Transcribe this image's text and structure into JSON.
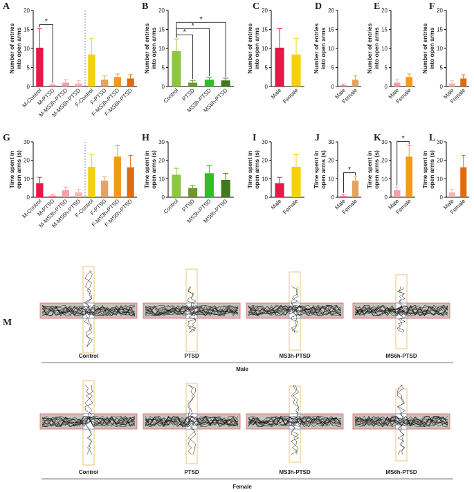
{
  "chart_data": [
    {
      "type": "bar",
      "panel": "A",
      "ylabel": [
        "Number of entries",
        "into open arms"
      ],
      "categories": [
        "M-Control",
        "M-PTSD",
        "M-MS3h-PTSD",
        "M-MS6h-PTSD",
        "F-Control",
        "F-PTSD",
        "F-MS3h-PTSD",
        "F-MS6h-PTSD"
      ],
      "values": [
        10.2,
        0.3,
        1.0,
        0.8,
        8.4,
        1.8,
        2.5,
        2.1
      ],
      "errors": [
        5.0,
        0.3,
        0.8,
        0.7,
        4.2,
        1.0,
        0.8,
        1.0
      ],
      "colors": [
        "#e8174a",
        "#f07b8c",
        "#f4a0a5",
        "#f5b5b5",
        "#f5d10c",
        "#e3a462",
        "#f39a1e",
        "#e06b0f"
      ],
      "ylim": [
        0,
        20
      ],
      "yticks": [
        0,
        5,
        10,
        15,
        20
      ],
      "divider_after": 3,
      "significance": [
        {
          "pair": [
            0,
            1
          ],
          "label": "*"
        }
      ]
    },
    {
      "type": "bar",
      "panel": "B",
      "ylabel": [
        "Number of entries",
        "into open arms"
      ],
      "categories": [
        "Control",
        "PTSD",
        "MS3h-PTSD",
        "MS6h-PTSD"
      ],
      "values": [
        9.3,
        1.0,
        1.8,
        1.6
      ],
      "errors": [
        3.2,
        0.6,
        0.6,
        0.6
      ],
      "colors": [
        "#8dc63f",
        "#6b9a2a",
        "#33bb2a",
        "#3f7a1e"
      ],
      "ylim": [
        0,
        20
      ],
      "yticks": [
        0,
        5,
        10,
        15,
        20
      ],
      "significance": [
        {
          "pair": [
            0,
            1
          ],
          "label": "*"
        },
        {
          "pair": [
            0,
            2
          ],
          "label": "*"
        },
        {
          "pair": [
            0,
            3
          ],
          "label": "*"
        }
      ]
    },
    {
      "type": "bar",
      "panel": "C",
      "ylabel": [
        "Number of entries",
        "into open arms"
      ],
      "categories": [
        "Male",
        "Female"
      ],
      "values": [
        10.2,
        8.4
      ],
      "errors": [
        5.0,
        4.2
      ],
      "colors": [
        "#e8174a",
        "#f5d10c"
      ],
      "ylim": [
        0,
        20
      ],
      "yticks": [
        0,
        5,
        10,
        15,
        20
      ]
    },
    {
      "type": "bar",
      "panel": "D",
      "ylabel": [
        "Number of entries",
        "into open arms"
      ],
      "categories": [
        "Male",
        "Female"
      ],
      "values": [
        0.3,
        1.8
      ],
      "errors": [
        0.3,
        1.0
      ],
      "colors": [
        "#f07b8c",
        "#e3a462"
      ],
      "ylim": [
        0,
        20
      ],
      "yticks": [
        0,
        5,
        10,
        15,
        20
      ]
    },
    {
      "type": "bar",
      "panel": "E",
      "ylabel": [
        "Number of entries",
        "into open arms"
      ],
      "categories": [
        "Male",
        "Female"
      ],
      "values": [
        1.0,
        2.5
      ],
      "errors": [
        0.8,
        0.8
      ],
      "colors": [
        "#f4a0a5",
        "#f39a1e"
      ],
      "ylim": [
        0,
        20
      ],
      "yticks": [
        0,
        5,
        10,
        15,
        20
      ]
    },
    {
      "type": "bar",
      "panel": "F",
      "ylabel": [
        "Number of entries",
        "into open arms"
      ],
      "categories": [
        "Male",
        "Female"
      ],
      "values": [
        0.8,
        2.1
      ],
      "errors": [
        0.7,
        1.0
      ],
      "colors": [
        "#f5b5b5",
        "#e06b0f"
      ],
      "ylim": [
        0,
        20
      ],
      "yticks": [
        0,
        5,
        10,
        15,
        20
      ]
    },
    {
      "type": "bar",
      "panel": "G",
      "ylabel": [
        "Time spent in",
        "open arms (s)"
      ],
      "categories": [
        "M-Control",
        "M-PTSD",
        "M-MS3h-PTSD",
        "M-MS6h-PTSD",
        "F-Control",
        "F-PTSD",
        "F-MS3h-PTSD",
        "F-MS6h-PTSD"
      ],
      "values": [
        7.6,
        0.8,
        3.8,
        2.6,
        16.5,
        9.0,
        22.0,
        16.2
      ],
      "errors": [
        3.2,
        0.8,
        1.8,
        1.6,
        6.5,
        2.0,
        6.0,
        6.5
      ],
      "colors": [
        "#e8174a",
        "#f07b8c",
        "#f4a0a5",
        "#f5b5b5",
        "#f5d10c",
        "#e3a462",
        "#f39a1e",
        "#e06b0f"
      ],
      "ylim": [
        0,
        30
      ],
      "yticks": [
        0,
        10,
        20,
        30
      ],
      "divider_after": 3
    },
    {
      "type": "bar",
      "panel": "H",
      "ylabel": [
        "Time spent in",
        "open arms (s)"
      ],
      "categories": [
        "Control",
        "PTSD",
        "MS3h-PTSD",
        "MS6h-PTSD"
      ],
      "values": [
        12.2,
        5.0,
        13.0,
        9.4
      ],
      "errors": [
        3.5,
        1.5,
        4.0,
        3.5
      ],
      "colors": [
        "#8dc63f",
        "#6b9a2a",
        "#33bb2a",
        "#3f7a1e"
      ],
      "ylim": [
        0,
        30
      ],
      "yticks": [
        0,
        10,
        20,
        30
      ]
    },
    {
      "type": "bar",
      "panel": "I",
      "ylabel": [
        "Time spent in",
        "open arms (s)"
      ],
      "categories": [
        "Male",
        "Female"
      ],
      "values": [
        7.6,
        16.5
      ],
      "errors": [
        3.2,
        6.5
      ],
      "colors": [
        "#e8174a",
        "#f5d10c"
      ],
      "ylim": [
        0,
        30
      ],
      "yticks": [
        0,
        10,
        20,
        30
      ]
    },
    {
      "type": "bar",
      "panel": "J",
      "ylabel": [
        "Time spent in",
        "open arms (s)"
      ],
      "categories": [
        "Male",
        "Female"
      ],
      "values": [
        0.8,
        9.0
      ],
      "errors": [
        0.8,
        2.0
      ],
      "colors": [
        "#f07b8c",
        "#e3a462"
      ],
      "ylim": [
        0,
        30
      ],
      "yticks": [
        0,
        10,
        20,
        30
      ],
      "significance": [
        {
          "pair": [
            0,
            1
          ],
          "label": "*"
        }
      ]
    },
    {
      "type": "bar",
      "panel": "K",
      "ylabel": [
        "Time spent in",
        "open arms (s)"
      ],
      "categories": [
        "Male",
        "Female"
      ],
      "values": [
        3.8,
        22.0
      ],
      "errors": [
        1.8,
        6.0
      ],
      "colors": [
        "#f4a0a5",
        "#f39a1e"
      ],
      "ylim": [
        0,
        30
      ],
      "yticks": [
        0,
        10,
        20,
        30
      ],
      "significance": [
        {
          "pair": [
            0,
            1
          ],
          "label": "*"
        }
      ]
    },
    {
      "type": "bar",
      "panel": "L",
      "ylabel": [
        "Time spent in",
        "open arms (s)"
      ],
      "categories": [
        "Male",
        "Female"
      ],
      "values": [
        2.6,
        16.2
      ],
      "errors": [
        1.6,
        6.5
      ],
      "colors": [
        "#f5b5b5",
        "#e06b0f"
      ],
      "ylim": [
        0,
        30
      ],
      "yticks": [
        0,
        10,
        20,
        30
      ]
    }
  ],
  "maze": {
    "panel": "M",
    "groups": [
      "Control",
      "PTSD",
      "MS3h-PTSD",
      "MS6h-PTSD"
    ],
    "sexes": [
      "Male",
      "Female"
    ]
  }
}
